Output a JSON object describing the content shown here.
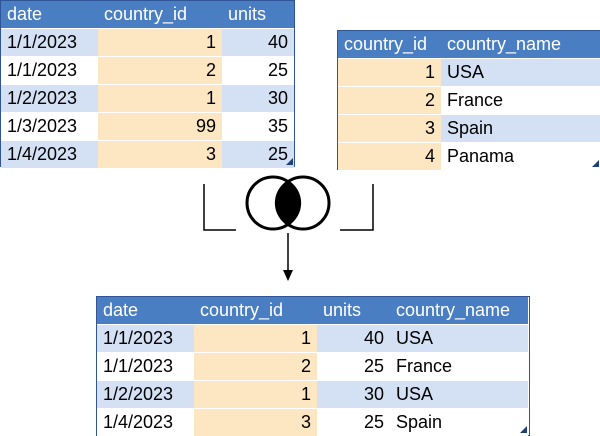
{
  "sales_table": {
    "headers": [
      "date",
      "country_id",
      "units"
    ],
    "rows": [
      [
        "1/1/2023",
        "1",
        "40"
      ],
      [
        "1/1/2023",
        "2",
        "25"
      ],
      [
        "1/2/2023",
        "1",
        "30"
      ],
      [
        "1/3/2023",
        "99",
        "35"
      ],
      [
        "1/4/2023",
        "3",
        "25"
      ]
    ]
  },
  "country_table": {
    "headers": [
      "country_id",
      "country_name"
    ],
    "rows": [
      [
        "1",
        "USA"
      ],
      [
        "2",
        "France"
      ],
      [
        "3",
        "Spain"
      ],
      [
        "4",
        "Panama"
      ]
    ]
  },
  "result_table": {
    "headers": [
      "date",
      "country_id",
      "units",
      "country_name"
    ],
    "rows": [
      [
        "1/1/2023",
        "1",
        "40",
        "USA"
      ],
      [
        "1/1/2023",
        "2",
        "25",
        "France"
      ],
      [
        "1/2/2023",
        "1",
        "30",
        "USA"
      ],
      [
        "1/4/2023",
        "3",
        "25",
        "Spain"
      ]
    ]
  },
  "join_icon": "inner-join-venn-icon",
  "colors": {
    "header": "#4a7ec3",
    "band_row": "#d4e1f5",
    "key_column": "#fde6c2",
    "plain_row": "#ffffff"
  }
}
